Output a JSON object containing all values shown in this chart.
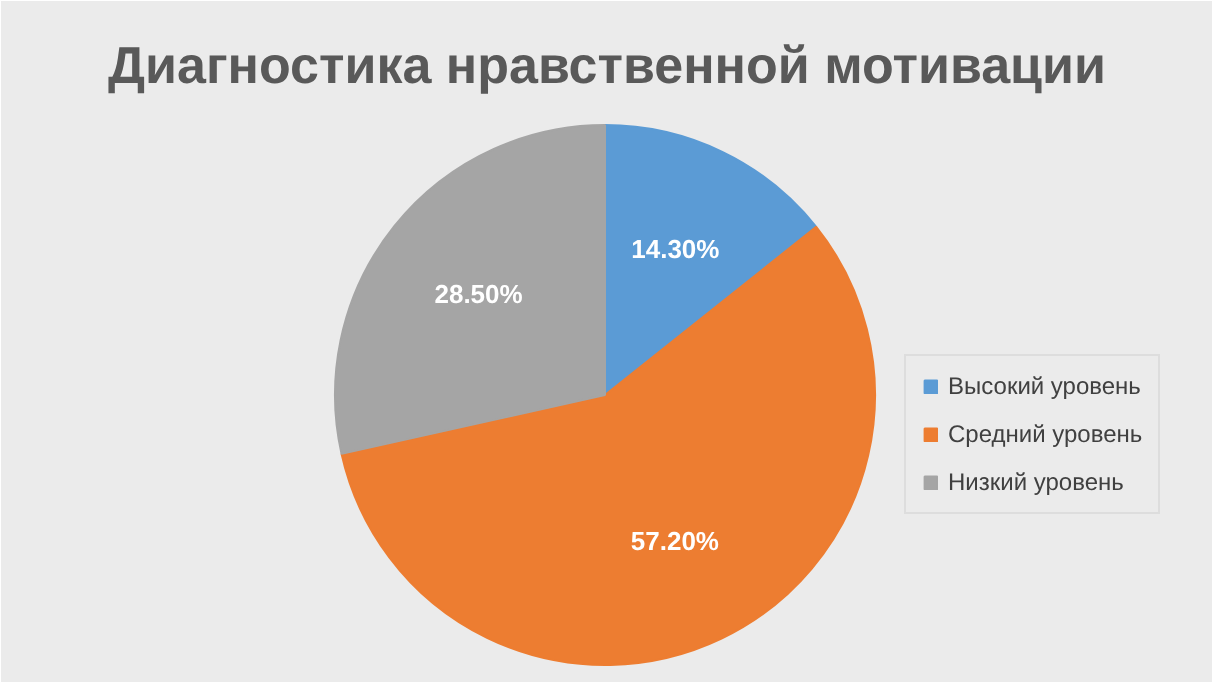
{
  "chart_data": {
    "type": "pie",
    "title": "Диагностика нравственной мотивации",
    "categories": [
      "Высокий уровень",
      "Средний уровень",
      "Низкий уровень"
    ],
    "values": [
      14.3,
      57.2,
      28.5
    ],
    "colors": [
      "#5b9bd5",
      "#ed7d31",
      "#a5a5a5"
    ],
    "value_labels": [
      "14.30%",
      "57.20%",
      "28.50%"
    ],
    "legend": "right"
  }
}
